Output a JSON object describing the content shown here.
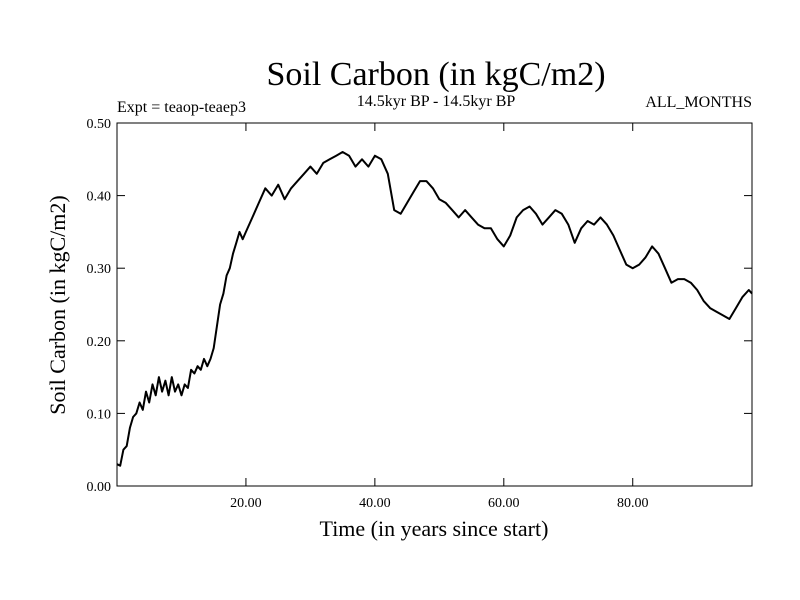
{
  "chart_data": {
    "type": "line",
    "title": "Soil Carbon (in kgC/m2)",
    "subtitle": "14.5kyr BP - 14.5kyr BP",
    "experiment_label": "Expt = teaop-teaep3",
    "months_label": "ALL_MONTHS",
    "xlabel": "Time (in years since start)",
    "ylabel": "Soil Carbon (in kgC/m2)",
    "xlim": [
      0,
      98.5
    ],
    "ylim": [
      0,
      0.5
    ],
    "x_ticks": [
      20,
      40,
      60,
      80
    ],
    "x_tick_labels": [
      "20.00",
      "40.00",
      "60.00",
      "80.00"
    ],
    "y_ticks": [
      0,
      0.1,
      0.2,
      0.3,
      0.4,
      0.5
    ],
    "y_tick_labels": [
      "0.00",
      "0.10",
      "0.20",
      "0.30",
      "0.40",
      "0.50"
    ],
    "grid": false,
    "series": [
      {
        "name": "Soil Carbon",
        "color": "#000000",
        "x": [
          0,
          0.5,
          1,
          1.5,
          2,
          2.5,
          3,
          3.5,
          4,
          4.5,
          5,
          5.5,
          6,
          6.5,
          7,
          7.5,
          8,
          8.5,
          9,
          9.5,
          10,
          10.5,
          11,
          11.5,
          12,
          12.5,
          13,
          13.5,
          14,
          14.5,
          15,
          15.5,
          16,
          16.5,
          17,
          17.5,
          18,
          18.5,
          19,
          19.5,
          20,
          21,
          22,
          23,
          24,
          25,
          26,
          27,
          28,
          29,
          30,
          31,
          32,
          33,
          34,
          35,
          36,
          37,
          38,
          39,
          40,
          41,
          42,
          43,
          44,
          45,
          46,
          47,
          48,
          49,
          50,
          51,
          52,
          53,
          54,
          55,
          56,
          57,
          58,
          59,
          60,
          61,
          62,
          63,
          64,
          65,
          66,
          67,
          68,
          69,
          70,
          71,
          72,
          73,
          74,
          75,
          76,
          77,
          78,
          79,
          80,
          81,
          82,
          83,
          84,
          85,
          86,
          87,
          88,
          89,
          90,
          91,
          92,
          93,
          94,
          95,
          96,
          97,
          98,
          98.5
        ],
        "values": [
          0.03,
          0.028,
          0.05,
          0.055,
          0.08,
          0.095,
          0.1,
          0.115,
          0.105,
          0.13,
          0.115,
          0.14,
          0.125,
          0.15,
          0.13,
          0.145,
          0.125,
          0.15,
          0.13,
          0.14,
          0.125,
          0.14,
          0.135,
          0.16,
          0.155,
          0.165,
          0.16,
          0.175,
          0.165,
          0.175,
          0.19,
          0.22,
          0.25,
          0.265,
          0.29,
          0.3,
          0.32,
          0.335,
          0.35,
          0.34,
          0.35,
          0.37,
          0.39,
          0.41,
          0.4,
          0.415,
          0.395,
          0.41,
          0.42,
          0.43,
          0.44,
          0.43,
          0.445,
          0.45,
          0.455,
          0.46,
          0.455,
          0.44,
          0.45,
          0.44,
          0.455,
          0.45,
          0.43,
          0.38,
          0.375,
          0.39,
          0.405,
          0.42,
          0.42,
          0.41,
          0.395,
          0.39,
          0.38,
          0.37,
          0.38,
          0.37,
          0.36,
          0.355,
          0.355,
          0.34,
          0.33,
          0.345,
          0.37,
          0.38,
          0.385,
          0.375,
          0.36,
          0.37,
          0.38,
          0.375,
          0.36,
          0.335,
          0.355,
          0.365,
          0.36,
          0.37,
          0.36,
          0.345,
          0.325,
          0.305,
          0.3,
          0.305,
          0.315,
          0.33,
          0.32,
          0.3,
          0.28,
          0.285,
          0.285,
          0.28,
          0.27,
          0.255,
          0.245,
          0.24,
          0.235,
          0.23,
          0.245,
          0.26,
          0.27,
          0.265
        ]
      }
    ]
  }
}
